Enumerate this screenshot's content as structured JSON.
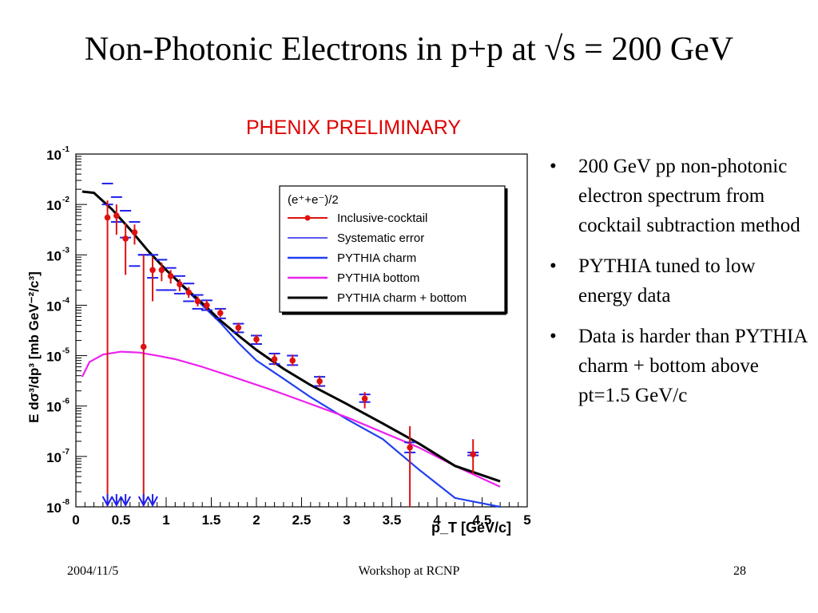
{
  "slide": {
    "title": "Non-Photonic Electrons in p+p at √s = 200 GeV",
    "preliminary": "PHENIX PRELIMINARY",
    "bullets": [
      "200 GeV pp non-photonic electron spectrum from cocktail subtraction method",
      "PYTHIA tuned to low energy data",
      "Data is harder than PYTHIA charm + bottom above pt=1.5 GeV/c"
    ],
    "footer": {
      "date": "2004/11/5",
      "venue": "Workshop at RCNP",
      "page": "28"
    }
  },
  "colors": {
    "data": "#e01010",
    "syst": "#2020ee",
    "charm": "#2040ee",
    "bottom": "#ee22ee",
    "sum": "#000000"
  },
  "chart_data": {
    "type": "scatter",
    "xlabel": "p_T [GeV/c]",
    "ylabel": "E dσ³/dp³ [mb GeV⁻²/c³]",
    "xlim": [
      0,
      5
    ],
    "ylim": [
      1e-08,
      0.1
    ],
    "yscale": "log",
    "xticks": [
      "0",
      "0.5",
      "1",
      "1.5",
      "2",
      "2.5",
      "3",
      "3.5",
      "4",
      "4.5",
      "5"
    ],
    "yticks": [
      {
        "base": "10",
        "exp": "-8"
      },
      {
        "base": "10",
        "exp": "-7"
      },
      {
        "base": "10",
        "exp": "-6"
      },
      {
        "base": "10",
        "exp": "-5"
      },
      {
        "base": "10",
        "exp": "-4"
      },
      {
        "base": "10",
        "exp": "-3"
      },
      {
        "base": "10",
        "exp": "-2"
      },
      {
        "base": "10",
        "exp": "-1"
      }
    ],
    "legend": {
      "placement": "top-right",
      "header": "(e⁺+e⁻)/2",
      "entries": [
        "Inclusive-cocktail",
        "Systematic error",
        "PYTHIA charm",
        "PYTHIA bottom",
        "PYTHIA charm + bottom"
      ]
    },
    "points": [
      {
        "x": 0.35,
        "y": 0.0055,
        "lo": 1e-08,
        "hi": 0.012
      },
      {
        "x": 0.45,
        "y": 0.006,
        "lo": 0.0025,
        "hi": 0.01
      },
      {
        "x": 0.55,
        "y": 0.0021,
        "lo": 0.0004,
        "hi": 0.0042
      },
      {
        "x": 0.65,
        "y": 0.0028,
        "lo": 0.0016,
        "hi": 0.004
      },
      {
        "x": 0.75,
        "y": 1.5e-05,
        "lo": 1e-08,
        "hi": 0.001
      },
      {
        "x": 0.85,
        "y": 0.0005,
        "lo": 0.00012,
        "hi": 0.0009
      },
      {
        "x": 0.95,
        "y": 0.0005,
        "lo": 0.0003,
        "hi": 0.0007
      },
      {
        "x": 1.05,
        "y": 0.00038,
        "lo": 0.00027,
        "hi": 0.0005
      },
      {
        "x": 1.15,
        "y": 0.00026,
        "lo": 0.00019,
        "hi": 0.00033
      },
      {
        "x": 1.25,
        "y": 0.00018,
        "lo": 0.00014,
        "hi": 0.00023
      },
      {
        "x": 1.35,
        "y": 0.00012,
        "lo": 9.5e-05,
        "hi": 0.00015
      },
      {
        "x": 1.45,
        "y": 0.0001,
        "lo": 8e-05,
        "hi": 0.000125
      },
      {
        "x": 1.6,
        "y": 7e-05,
        "lo": 5.8e-05,
        "hi": 8.5e-05
      },
      {
        "x": 1.8,
        "y": 3.6e-05,
        "lo": 2.9e-05,
        "hi": 4.5e-05
      },
      {
        "x": 2.0,
        "y": 2.1e-05,
        "lo": 1.7e-05,
        "hi": 2.6e-05
      },
      {
        "x": 2.2,
        "y": 8.5e-06,
        "lo": 6.5e-06,
        "hi": 1.1e-05
      },
      {
        "x": 2.4,
        "y": 8e-06,
        "lo": 6.2e-06,
        "hi": 1.05e-05
      },
      {
        "x": 2.7,
        "y": 3.1e-06,
        "lo": 2.4e-06,
        "hi": 4e-06
      },
      {
        "x": 3.2,
        "y": 1.4e-06,
        "lo": 9e-07,
        "hi": 1.9e-06
      },
      {
        "x": 3.7,
        "y": 1.5e-07,
        "lo": 1e-08,
        "hi": 4e-07
      },
      {
        "x": 4.4,
        "y": 1.1e-07,
        "lo": 4.5e-08,
        "hi": 2.2e-07
      }
    ],
    "systematic": [
      {
        "x": 0.35,
        "lo": 0.01,
        "hi": 0.026
      },
      {
        "x": 0.45,
        "lo": 0.0045,
        "hi": 0.014
      },
      {
        "x": 0.55,
        "lo": 0.0022,
        "hi": 0.0075
      },
      {
        "x": 0.65,
        "lo": 0.0006,
        "hi": 0.0045
      },
      {
        "x": 0.75,
        "lo": 0.001,
        "hi": 0.001
      },
      {
        "x": 0.85,
        "lo": 0.00035,
        "hi": 0.001
      },
      {
        "x": 0.95,
        "lo": 0.0002,
        "hi": 0.0008
      },
      {
        "x": 1.05,
        "lo": 0.0002,
        "hi": 0.00055
      },
      {
        "x": 1.15,
        "lo": 0.00017,
        "hi": 0.00038
      },
      {
        "x": 1.25,
        "lo": 0.00012,
        "hi": 0.00027
      },
      {
        "x": 1.35,
        "lo": 8.5e-05,
        "hi": 0.00016
      },
      {
        "x": 1.45,
        "lo": 8e-05,
        "hi": 0.000125
      },
      {
        "x": 1.6,
        "lo": 5.5e-05,
        "hi": 8.5e-05
      },
      {
        "x": 1.8,
        "lo": 2.9e-05,
        "hi": 4.3e-05
      },
      {
        "x": 2.0,
        "lo": 1.7e-05,
        "hi": 2.5e-05
      },
      {
        "x": 2.2,
        "lo": 6.8e-06,
        "hi": 1.1e-05
      },
      {
        "x": 2.4,
        "lo": 6.5e-06,
        "hi": 1e-05
      },
      {
        "x": 2.7,
        "lo": 2.5e-06,
        "hi": 3.8e-06
      },
      {
        "x": 3.2,
        "lo": 1.2e-06,
        "hi": 1.7e-06
      },
      {
        "x": 3.7,
        "lo": 1.2e-07,
        "hi": 1.9e-07
      },
      {
        "x": 4.4,
        "lo": 1.05e-07,
        "hi": 1.2e-07
      }
    ],
    "upper_limit_arrows_x": [
      0.35,
      0.45,
      0.55,
      0.75,
      0.85
    ],
    "series": [
      {
        "name": "PYTHIA charm",
        "color": "#2040ee",
        "x": [
          0.07,
          0.2,
          0.4,
          0.6,
          0.8,
          1.0,
          1.2,
          1.4,
          1.6,
          1.8,
          2.0,
          2.3,
          2.6,
          3.0,
          3.4,
          3.8,
          4.2,
          4.7
        ],
        "y": [
          0.018,
          0.017,
          0.008,
          0.0032,
          0.0012,
          0.0005,
          0.00022,
          0.0001,
          4.5e-05,
          1.8e-05,
          8e-06,
          3.5e-06,
          1.5e-06,
          5.5e-07,
          2.2e-07,
          5.5e-08,
          1.5e-08,
          1e-08
        ]
      },
      {
        "name": "PYTHIA bottom",
        "color": "#ee22ee",
        "x": [
          0.07,
          0.15,
          0.3,
          0.5,
          0.7,
          0.9,
          1.1,
          1.4,
          1.8,
          2.2,
          2.6,
          3.0,
          3.4,
          3.8,
          4.2,
          4.7
        ],
        "y": [
          3.8e-06,
          7.5e-06,
          1.05e-05,
          1.2e-05,
          1.15e-05,
          1e-05,
          8.5e-06,
          6e-06,
          3.5e-06,
          2e-06,
          1.1e-06,
          6e-07,
          3e-07,
          1.5e-07,
          6.5e-08,
          2.5e-08
        ]
      },
      {
        "name": "PYTHIA charm + bottom",
        "color": "#000000",
        "x": [
          0.07,
          0.2,
          0.4,
          0.6,
          0.8,
          1.0,
          1.2,
          1.4,
          1.6,
          1.8,
          2.0,
          2.3,
          2.6,
          3.0,
          3.4,
          3.8,
          4.2,
          4.7
        ],
        "y": [
          0.018,
          0.017,
          0.008,
          0.0032,
          0.0012,
          0.0005,
          0.00023,
          0.00011,
          5e-05,
          2.5e-05,
          1.3e-05,
          5.5e-06,
          2.6e-06,
          1.1e-06,
          4.5e-07,
          1.8e-07,
          6.5e-08,
          3.2e-08
        ]
      }
    ]
  }
}
